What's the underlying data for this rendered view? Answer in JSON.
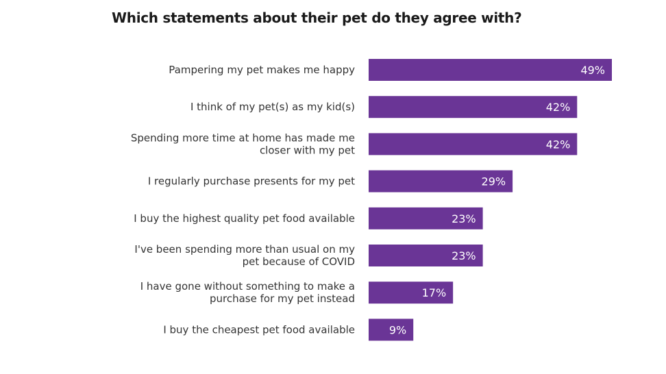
{
  "chart_data": {
    "type": "bar",
    "orientation": "horizontal",
    "title": "Which statements about their pet do they agree with?",
    "categories": [
      "Pampering my pet makes me happy",
      "I think of my pet(s) as my kid(s)",
      "Spending more time at home has made me closer with my pet",
      "I regularly purchase presents for my pet",
      "I buy the highest quality pet food available",
      "I've been spending more than usual on my pet because of COVID",
      "I have gone without something to make a purchase for my pet instead",
      "I buy the cheapest pet food available"
    ],
    "category_lines": [
      [
        "Pampering my pet makes me happy"
      ],
      [
        "I think of my pet(s) as my kid(s)"
      ],
      [
        "Spending more time at home has made me",
        "closer with my pet"
      ],
      [
        "I regularly purchase presents for my pet"
      ],
      [
        "I buy the highest quality pet food available"
      ],
      [
        "I've been spending more than usual on my",
        "pet because of COVID"
      ],
      [
        "I have gone without something to make a",
        "purchase for my pet instead"
      ],
      [
        "I buy the cheapest pet food available"
      ]
    ],
    "values": [
      49,
      42,
      42,
      29,
      23,
      23,
      17,
      9
    ],
    "value_labels": [
      "49%",
      "42%",
      "42%",
      "29%",
      "23%",
      "23%",
      "17%",
      "9%"
    ],
    "unit": "%",
    "xlim": [
      0,
      49
    ],
    "bar_color": "#6a3596",
    "label_color": "#ffffff",
    "grid": false,
    "legend": "none"
  }
}
